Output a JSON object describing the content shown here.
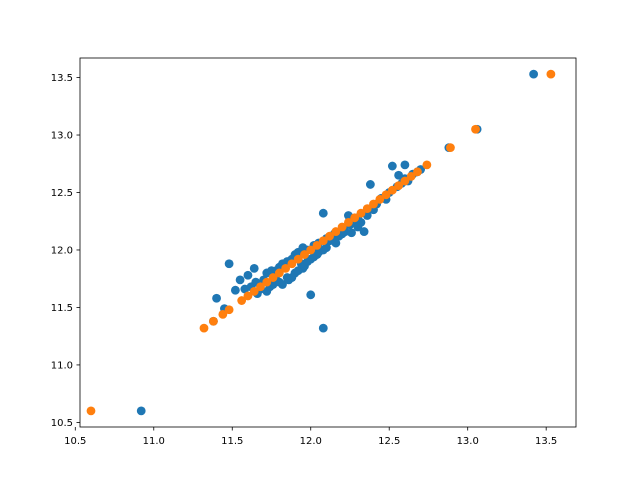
{
  "chart_data": {
    "type": "scatter",
    "title": "",
    "xlabel": "",
    "ylabel": "",
    "xlim": [
      10.53,
      13.69
    ],
    "ylim": [
      10.46,
      13.67
    ],
    "grid": false,
    "legend": "none",
    "x_ticks": [
      "10.5",
      "11.0",
      "11.5",
      "12.0",
      "12.5",
      "13.0",
      "13.5"
    ],
    "y_ticks": [
      "10.5",
      "11.0",
      "11.5",
      "12.0",
      "12.5",
      "13.0",
      "13.5"
    ],
    "series": [
      {
        "color": "#1f77b4",
        "x": [
          10.92,
          13.42,
          13.06,
          12.88,
          12.08,
          12.0,
          11.48,
          12.38,
          12.08,
          11.4,
          11.45,
          11.38,
          11.52,
          11.58,
          11.62,
          11.65,
          11.7,
          11.72,
          11.75,
          11.78,
          11.8,
          11.82,
          11.85,
          11.88,
          11.9,
          11.92,
          11.95,
          11.98,
          12.02,
          12.05,
          12.1,
          12.15,
          12.2,
          12.25,
          12.28,
          12.3,
          12.35,
          12.42,
          12.45,
          12.5,
          12.55,
          12.58,
          12.6,
          12.62,
          12.65,
          12.68,
          12.7,
          12.52,
          12.56,
          12.6,
          11.68,
          11.72,
          11.76,
          11.8,
          11.85,
          11.9,
          11.95,
          12.0,
          12.05,
          12.1,
          12.12,
          12.18,
          12.22,
          12.26,
          12.3,
          12.32,
          12.36,
          11.6,
          11.64,
          11.82,
          11.86,
          11.92,
          11.96,
          12.02,
          12.08,
          12.14,
          12.2,
          11.55,
          11.66,
          11.74,
          11.78,
          11.88,
          11.94,
          11.98,
          12.04,
          12.16,
          12.24,
          12.34,
          12.4,
          12.48,
          12.38
        ],
        "y": [
          10.6,
          13.53,
          13.05,
          12.89,
          11.32,
          11.61,
          11.88,
          12.57,
          12.32,
          11.58,
          11.49,
          11.38,
          11.65,
          11.66,
          11.68,
          11.72,
          11.74,
          11.8,
          11.82,
          11.78,
          11.85,
          11.88,
          11.9,
          11.92,
          11.96,
          11.98,
          12.02,
          12.0,
          12.04,
          12.06,
          12.1,
          12.14,
          12.18,
          12.22,
          12.25,
          12.28,
          12.32,
          12.4,
          12.45,
          12.5,
          12.55,
          12.58,
          12.62,
          12.6,
          12.66,
          12.68,
          12.7,
          12.73,
          12.65,
          12.74,
          11.66,
          11.64,
          11.7,
          11.72,
          11.76,
          11.8,
          11.84,
          11.92,
          11.98,
          12.02,
          12.08,
          12.12,
          12.16,
          12.15,
          12.2,
          12.24,
          12.3,
          11.78,
          11.84,
          11.7,
          11.74,
          11.82,
          11.86,
          11.94,
          12.0,
          12.1,
          12.14,
          11.74,
          11.62,
          11.68,
          11.82,
          11.76,
          11.88,
          11.9,
          11.96,
          12.06,
          12.3,
          12.16,
          12.35,
          12.44,
          12.36
        ]
      },
      {
        "color": "#ff7f0e",
        "x": [
          10.6,
          11.32,
          11.38,
          11.44,
          11.48,
          11.56,
          11.6,
          11.64,
          11.68,
          11.72,
          11.76,
          11.8,
          11.84,
          11.88,
          11.92,
          11.96,
          12.0,
          12.04,
          12.08,
          12.12,
          12.16,
          12.2,
          12.24,
          12.28,
          12.32,
          12.36,
          12.4,
          12.44,
          12.48,
          12.52,
          12.56,
          12.6,
          12.64,
          12.68,
          12.74,
          12.89,
          13.05,
          13.53
        ],
        "y": [
          10.6,
          11.32,
          11.38,
          11.44,
          11.48,
          11.56,
          11.6,
          11.64,
          11.68,
          11.72,
          11.76,
          11.8,
          11.84,
          11.88,
          11.92,
          11.96,
          12.0,
          12.04,
          12.08,
          12.12,
          12.16,
          12.2,
          12.24,
          12.28,
          12.32,
          12.36,
          12.4,
          12.44,
          12.48,
          12.52,
          12.56,
          12.6,
          12.64,
          12.68,
          12.74,
          12.89,
          13.05,
          13.53
        ]
      }
    ]
  }
}
